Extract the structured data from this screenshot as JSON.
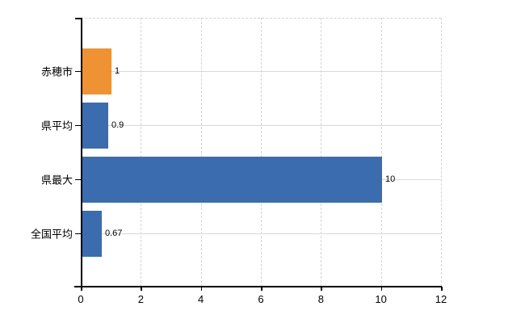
{
  "chart_data": {
    "type": "bar",
    "orientation": "horizontal",
    "title": "",
    "xlabel": "",
    "ylabel": "",
    "categories": [
      "赤穂市",
      "県平均",
      "県最大",
      "全国平均"
    ],
    "values": [
      1,
      0.9,
      10,
      0.67
    ],
    "value_labels": [
      "1",
      "0.9",
      "10",
      "0.67"
    ],
    "bar_colors": [
      "#ef9233",
      "#3b6cb0",
      "#3b6cb0",
      "#3b6cb0"
    ],
    "xlim": [
      0,
      12
    ],
    "xticks": [
      0,
      2,
      4,
      6,
      8,
      10,
      12
    ],
    "xtick_labels": [
      "0",
      "2",
      "4",
      "6",
      "8",
      "10",
      "12"
    ],
    "grid": true,
    "legend": false,
    "background": "#ffffff"
  },
  "colors": {
    "accent_orange": "#ef9233",
    "accent_blue": "#3b6cb0",
    "gridline": "#d9d9d9",
    "axis": "#000000",
    "text": "#000000",
    "background": "#ffffff"
  }
}
